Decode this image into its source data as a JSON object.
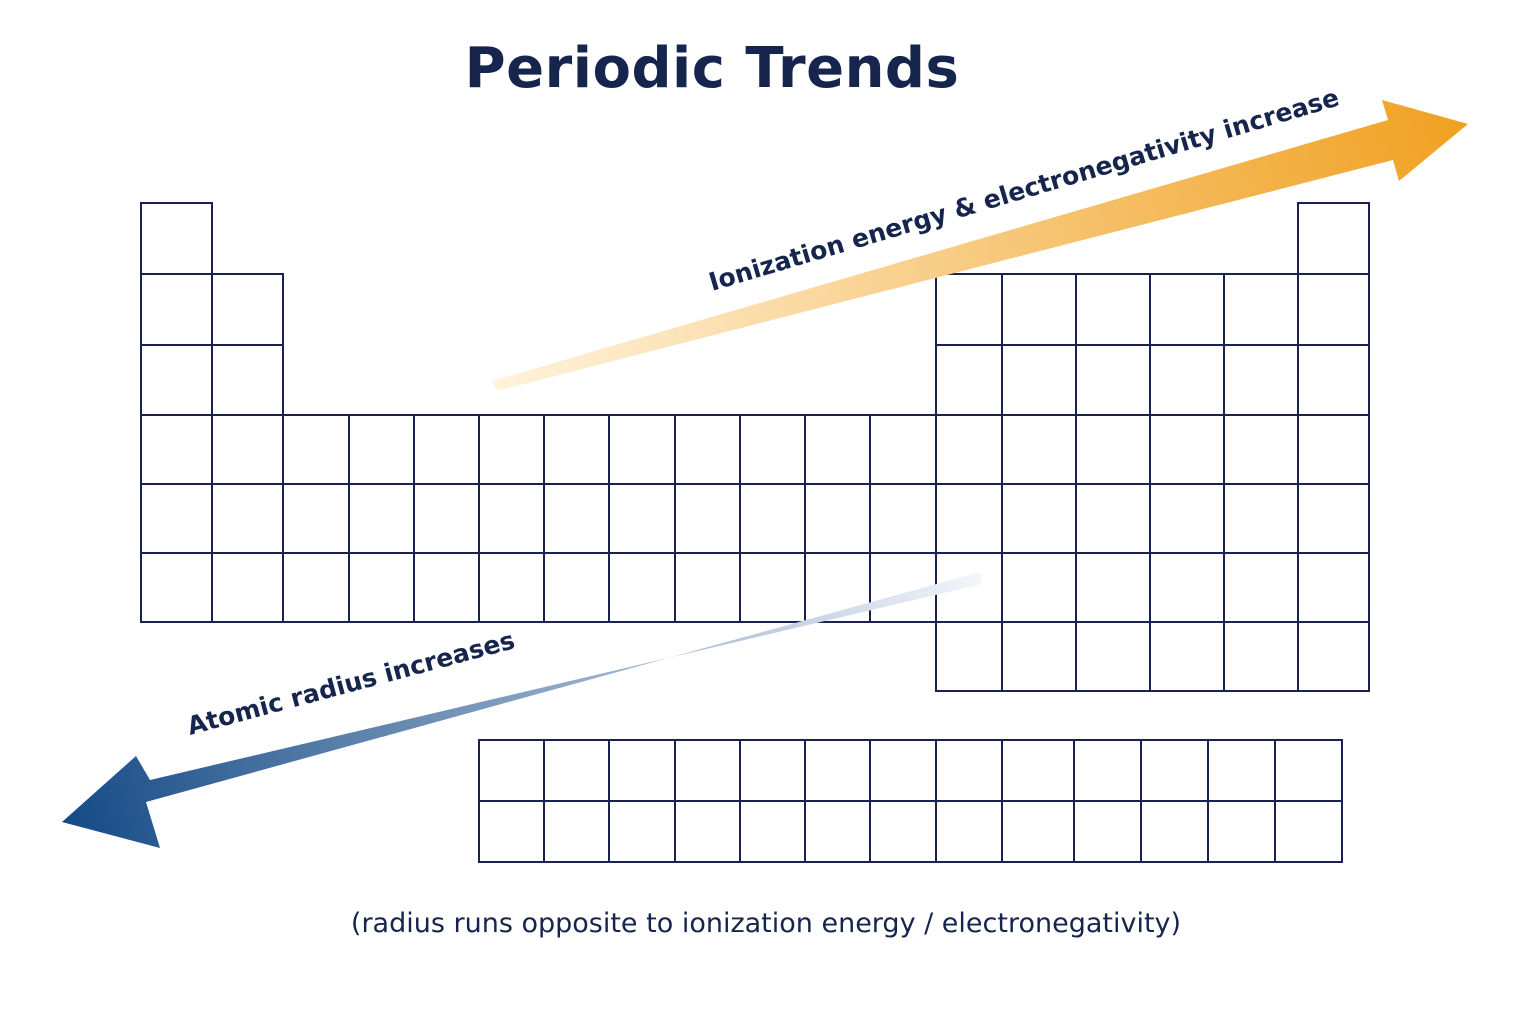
{
  "title": "Periodic Trends",
  "caption": "(radius runs opposite to ionization energy / electronegativity)",
  "trends": {
    "ionization": {
      "label": "Ionization energy & electronegativity increase",
      "color": "#f0a020",
      "direction": "toward upper right"
    },
    "radius": {
      "label": "Atomic radius increases",
      "color": "#17467f",
      "direction": "toward lower left"
    }
  },
  "table": {
    "main_rows": 7,
    "main_columns": 18,
    "f_block_rows": 2,
    "f_block_columns": 13,
    "line_color": "#1a2350"
  }
}
